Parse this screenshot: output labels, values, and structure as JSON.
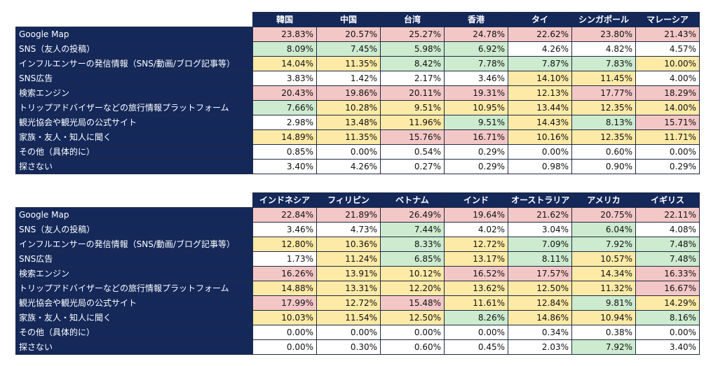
{
  "tables": [
    {
      "columns": [
        "韓国",
        "中国",
        "台湾",
        "香港",
        "タイ",
        "シンガポール",
        "マレーシア"
      ],
      "rows": [
        {
          "label": "Google Map",
          "values": [
            "23.83%",
            "20.57%",
            "25.27%",
            "24.78%",
            "22.62%",
            "23.80%",
            "21.43%"
          ],
          "colors": [
            "red",
            "red",
            "red",
            "red",
            "red",
            "red",
            "red"
          ]
        },
        {
          "label": "SNS（友人の投稿）",
          "values": [
            "8.09%",
            "7.45%",
            "5.98%",
            "6.92%",
            "4.26%",
            "4.82%",
            "4.57%"
          ],
          "colors": [
            "green",
            "green",
            "green",
            "green",
            "white",
            "white",
            "white"
          ]
        },
        {
          "label": "インフルエンサーの発信情報（SNS/動画/ブログ記事等）",
          "values": [
            "14.04%",
            "11.35%",
            "8.42%",
            "7.78%",
            "7.87%",
            "7.83%",
            "10.00%"
          ],
          "colors": [
            "yellow",
            "yellow",
            "green",
            "green",
            "green",
            "green",
            "yellow"
          ]
        },
        {
          "label": "SNS広告",
          "values": [
            "3.83%",
            "1.42%",
            "2.17%",
            "3.46%",
            "14.10%",
            "11.45%",
            "4.00%"
          ],
          "colors": [
            "white",
            "white",
            "white",
            "white",
            "yellow",
            "yellow",
            "white"
          ]
        },
        {
          "label": "検索エンジン",
          "values": [
            "20.43%",
            "19.86%",
            "20.11%",
            "19.31%",
            "12.13%",
            "17.77%",
            "18.29%"
          ],
          "colors": [
            "red",
            "red",
            "red",
            "red",
            "yellow",
            "red",
            "red"
          ]
        },
        {
          "label": "トリップアドバイザーなどの旅行情報プラットフォーム",
          "values": [
            "7.66%",
            "10.28%",
            "9.51%",
            "10.95%",
            "13.44%",
            "12.35%",
            "14.00%"
          ],
          "colors": [
            "green",
            "yellow",
            "yellow",
            "yellow",
            "yellow",
            "yellow",
            "yellow"
          ]
        },
        {
          "label": "観光協会や観光局の公式サイト",
          "values": [
            "2.98%",
            "13.48%",
            "11.96%",
            "9.51%",
            "14.43%",
            "8.13%",
            "15.71%"
          ],
          "colors": [
            "white",
            "yellow",
            "yellow",
            "green",
            "yellow",
            "green",
            "red"
          ]
        },
        {
          "label": "家族・友人・知人に聞く",
          "values": [
            "14.89%",
            "11.35%",
            "15.76%",
            "16.71%",
            "10.16%",
            "12.35%",
            "11.71%"
          ],
          "colors": [
            "yellow",
            "yellow",
            "red",
            "red",
            "yellow",
            "yellow",
            "yellow"
          ]
        },
        {
          "label": "その他（具体的に）",
          "values": [
            "0.85%",
            "0.00%",
            "0.54%",
            "0.29%",
            "0.00%",
            "0.60%",
            "0.00%"
          ],
          "colors": [
            "white",
            "white",
            "white",
            "white",
            "white",
            "white",
            "white"
          ]
        },
        {
          "label": "探さない",
          "values": [
            "3.40%",
            "4.26%",
            "0.27%",
            "0.29%",
            "0.98%",
            "0.90%",
            "0.29%"
          ],
          "colors": [
            "white",
            "white",
            "white",
            "white",
            "white",
            "white",
            "white"
          ]
        }
      ]
    },
    {
      "columns": [
        "インドネシア",
        "フィリピン",
        "ベトナム",
        "インド",
        "オーストラリア",
        "アメリカ",
        "イギリス"
      ],
      "rows": [
        {
          "label": "Google Map",
          "values": [
            "22.84%",
            "21.89%",
            "26.49%",
            "19.64%",
            "21.62%",
            "20.75%",
            "22.11%"
          ],
          "colors": [
            "red",
            "red",
            "red",
            "red",
            "red",
            "red",
            "red"
          ]
        },
        {
          "label": "SNS（友人の投稿）",
          "values": [
            "3.46%",
            "4.73%",
            "7.44%",
            "4.02%",
            "3.04%",
            "6.04%",
            "4.08%"
          ],
          "colors": [
            "white",
            "white",
            "green",
            "white",
            "white",
            "green",
            "white"
          ]
        },
        {
          "label": "インフルエンサーの発信情報（SNS/動画/ブログ記事等）",
          "values": [
            "12.80%",
            "10.36%",
            "8.33%",
            "12.72%",
            "7.09%",
            "7.92%",
            "7.48%"
          ],
          "colors": [
            "yellow",
            "yellow",
            "green",
            "yellow",
            "green",
            "green",
            "green"
          ]
        },
        {
          "label": "SNS広告",
          "values": [
            "1.73%",
            "11.24%",
            "6.85%",
            "13.17%",
            "8.11%",
            "10.57%",
            "7.48%"
          ],
          "colors": [
            "white",
            "yellow",
            "green",
            "yellow",
            "green",
            "yellow",
            "green"
          ]
        },
        {
          "label": "検索エンジン",
          "values": [
            "16.26%",
            "13.91%",
            "10.12%",
            "16.52%",
            "17.57%",
            "14.34%",
            "16.33%"
          ],
          "colors": [
            "red",
            "yellow",
            "yellow",
            "red",
            "red",
            "yellow",
            "red"
          ]
        },
        {
          "label": "トリップアドバイザーなどの旅行情報プラットフォーム",
          "values": [
            "14.88%",
            "13.31%",
            "12.20%",
            "13.62%",
            "12.50%",
            "11.32%",
            "16.67%"
          ],
          "colors": [
            "yellow",
            "yellow",
            "yellow",
            "yellow",
            "yellow",
            "yellow",
            "red"
          ]
        },
        {
          "label": "観光協会や観光局の公式サイト",
          "values": [
            "17.99%",
            "12.72%",
            "15.48%",
            "11.61%",
            "12.84%",
            "9.81%",
            "14.29%"
          ],
          "colors": [
            "red",
            "yellow",
            "red",
            "yellow",
            "yellow",
            "green",
            "yellow"
          ]
        },
        {
          "label": "家族・友人・知人に聞く",
          "values": [
            "10.03%",
            "11.54%",
            "12.50%",
            "8.26%",
            "14.86%",
            "10.94%",
            "8.16%"
          ],
          "colors": [
            "yellow",
            "yellow",
            "yellow",
            "green",
            "yellow",
            "yellow",
            "green"
          ]
        },
        {
          "label": "その他（具体的に）",
          "values": [
            "0.00%",
            "0.00%",
            "0.00%",
            "0.00%",
            "0.34%",
            "0.38%",
            "0.00%"
          ],
          "colors": [
            "white",
            "white",
            "white",
            "white",
            "white",
            "white",
            "white"
          ]
        },
        {
          "label": "探さない",
          "values": [
            "0.00%",
            "0.30%",
            "0.60%",
            "0.45%",
            "2.03%",
            "7.92%",
            "3.40%"
          ],
          "colors": [
            "white",
            "white",
            "white",
            "white",
            "white",
            "green",
            "white"
          ]
        }
      ]
    }
  ],
  "palette": {
    "header_bg": "#14285a",
    "red": "#f4c7c7",
    "yellow": "#fdeaa6",
    "green": "#cdebcf",
    "white": "#ffffff"
  }
}
